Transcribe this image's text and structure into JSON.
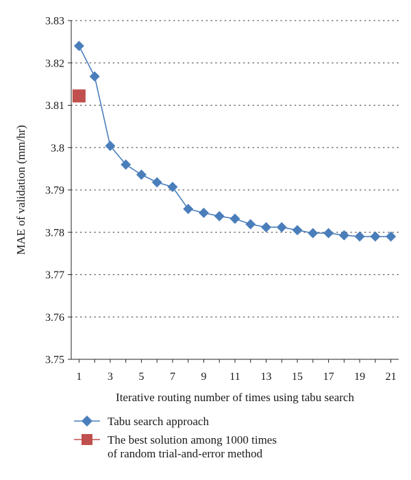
{
  "chart_data": {
    "type": "line",
    "title": "",
    "xlabel": "Iterative routing number of times using tabu search",
    "ylabel": "MAE of validation (mm/hr)",
    "xlim": [
      0.5,
      21.5
    ],
    "ylim": [
      3.75,
      3.83
    ],
    "grid": true,
    "grid_style": "dotted horizontal",
    "x_ticks": [
      1,
      3,
      5,
      7,
      9,
      11,
      13,
      15,
      17,
      19,
      21
    ],
    "x_tick_labels": [
      "1",
      "3",
      "5",
      "7",
      "9",
      "11",
      "13",
      "15",
      "17",
      "19",
      "21"
    ],
    "y_ticks": [
      3.75,
      3.76,
      3.77,
      3.78,
      3.79,
      3.8,
      3.81,
      3.82,
      3.83
    ],
    "y_tick_labels": [
      "3.75",
      "3.76",
      "3.77",
      "3.78",
      "3.79",
      "3.8",
      "3.81",
      "3.82",
      "3.83"
    ],
    "legend_position": "bottom",
    "series": [
      {
        "name": "Tabu search approach",
        "marker": "diamond",
        "color": "#4a7ebb",
        "x": [
          1,
          2,
          3,
          4,
          5,
          6,
          7,
          8,
          9,
          10,
          11,
          12,
          13,
          14,
          15,
          16,
          17,
          18,
          19,
          20,
          21
        ],
        "values": [
          3.824,
          3.8168,
          3.8004,
          3.796,
          3.7936,
          3.7918,
          3.7907,
          3.7855,
          3.7846,
          3.7838,
          3.7832,
          3.7819,
          3.7812,
          3.7812,
          3.7805,
          3.7798,
          3.7798,
          3.7793,
          3.779,
          3.779,
          3.779
        ]
      },
      {
        "name": "The best solution among 1000 times of random trial-and-error method",
        "name_lines": [
          "The best solution among 1000 times",
          "of random trial-and-error method"
        ],
        "marker": "square",
        "color": "#c0504d",
        "x": [
          1
        ],
        "values": [
          3.8122
        ]
      }
    ]
  }
}
